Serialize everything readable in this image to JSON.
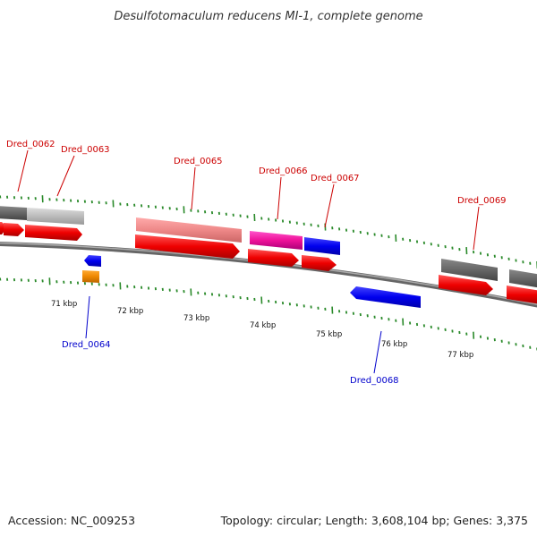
{
  "title": "Desulfotomaculum reducens MI-1, complete genome",
  "footer": {
    "accession": "Accession: NC_009253",
    "summary": "Topology: circular; Length: 3,608,104 bp; Genes: 3,375"
  },
  "colors": {
    "backbone": "#8a8a8a",
    "tick": "#2a8a2a",
    "forward_label": "#cc0000",
    "reverse_label": "#0000cc"
  },
  "scale": {
    "unit": "kbp",
    "labels": [
      "71 kbp",
      "72 kbp",
      "73 kbp",
      "74 kbp",
      "75 kbp",
      "76 kbp",
      "77 kbp"
    ]
  },
  "gene_labels": [
    {
      "text": "Dred_0062",
      "strand": "forward"
    },
    {
      "text": "Dred_0063",
      "strand": "forward"
    },
    {
      "text": "Dred_0065",
      "strand": "forward"
    },
    {
      "text": "Dred_0066",
      "strand": "forward"
    },
    {
      "text": "Dred_0067",
      "strand": "forward"
    },
    {
      "text": "Dred_0069",
      "strand": "forward"
    },
    {
      "text": "Dred_0064",
      "strand": "reverse"
    },
    {
      "text": "Dred_0068",
      "strand": "reverse"
    }
  ],
  "features": [
    {
      "kind": "gene",
      "strand": "forward",
      "color": "#666666"
    },
    {
      "kind": "gene",
      "strand": "forward",
      "color": "#bbbbbb"
    },
    {
      "kind": "gene",
      "strand": "forward",
      "color": "#ee8888"
    },
    {
      "kind": "gene",
      "strand": "forward",
      "color": "#ee1199"
    },
    {
      "kind": "gene",
      "strand": "forward",
      "color": "#0000ee"
    },
    {
      "kind": "gene",
      "strand": "forward",
      "color": "#666666"
    },
    {
      "kind": "gene",
      "strand": "forward",
      "color": "#666666"
    },
    {
      "kind": "cds",
      "strand": "forward",
      "color": "#ee0000"
    },
    {
      "kind": "gene",
      "strand": "reverse",
      "color": "#0000ee"
    },
    {
      "kind": "gene",
      "strand": "reverse",
      "color": "#ee8800"
    },
    {
      "kind": "gene",
      "strand": "reverse",
      "color": "#0000ee"
    }
  ]
}
